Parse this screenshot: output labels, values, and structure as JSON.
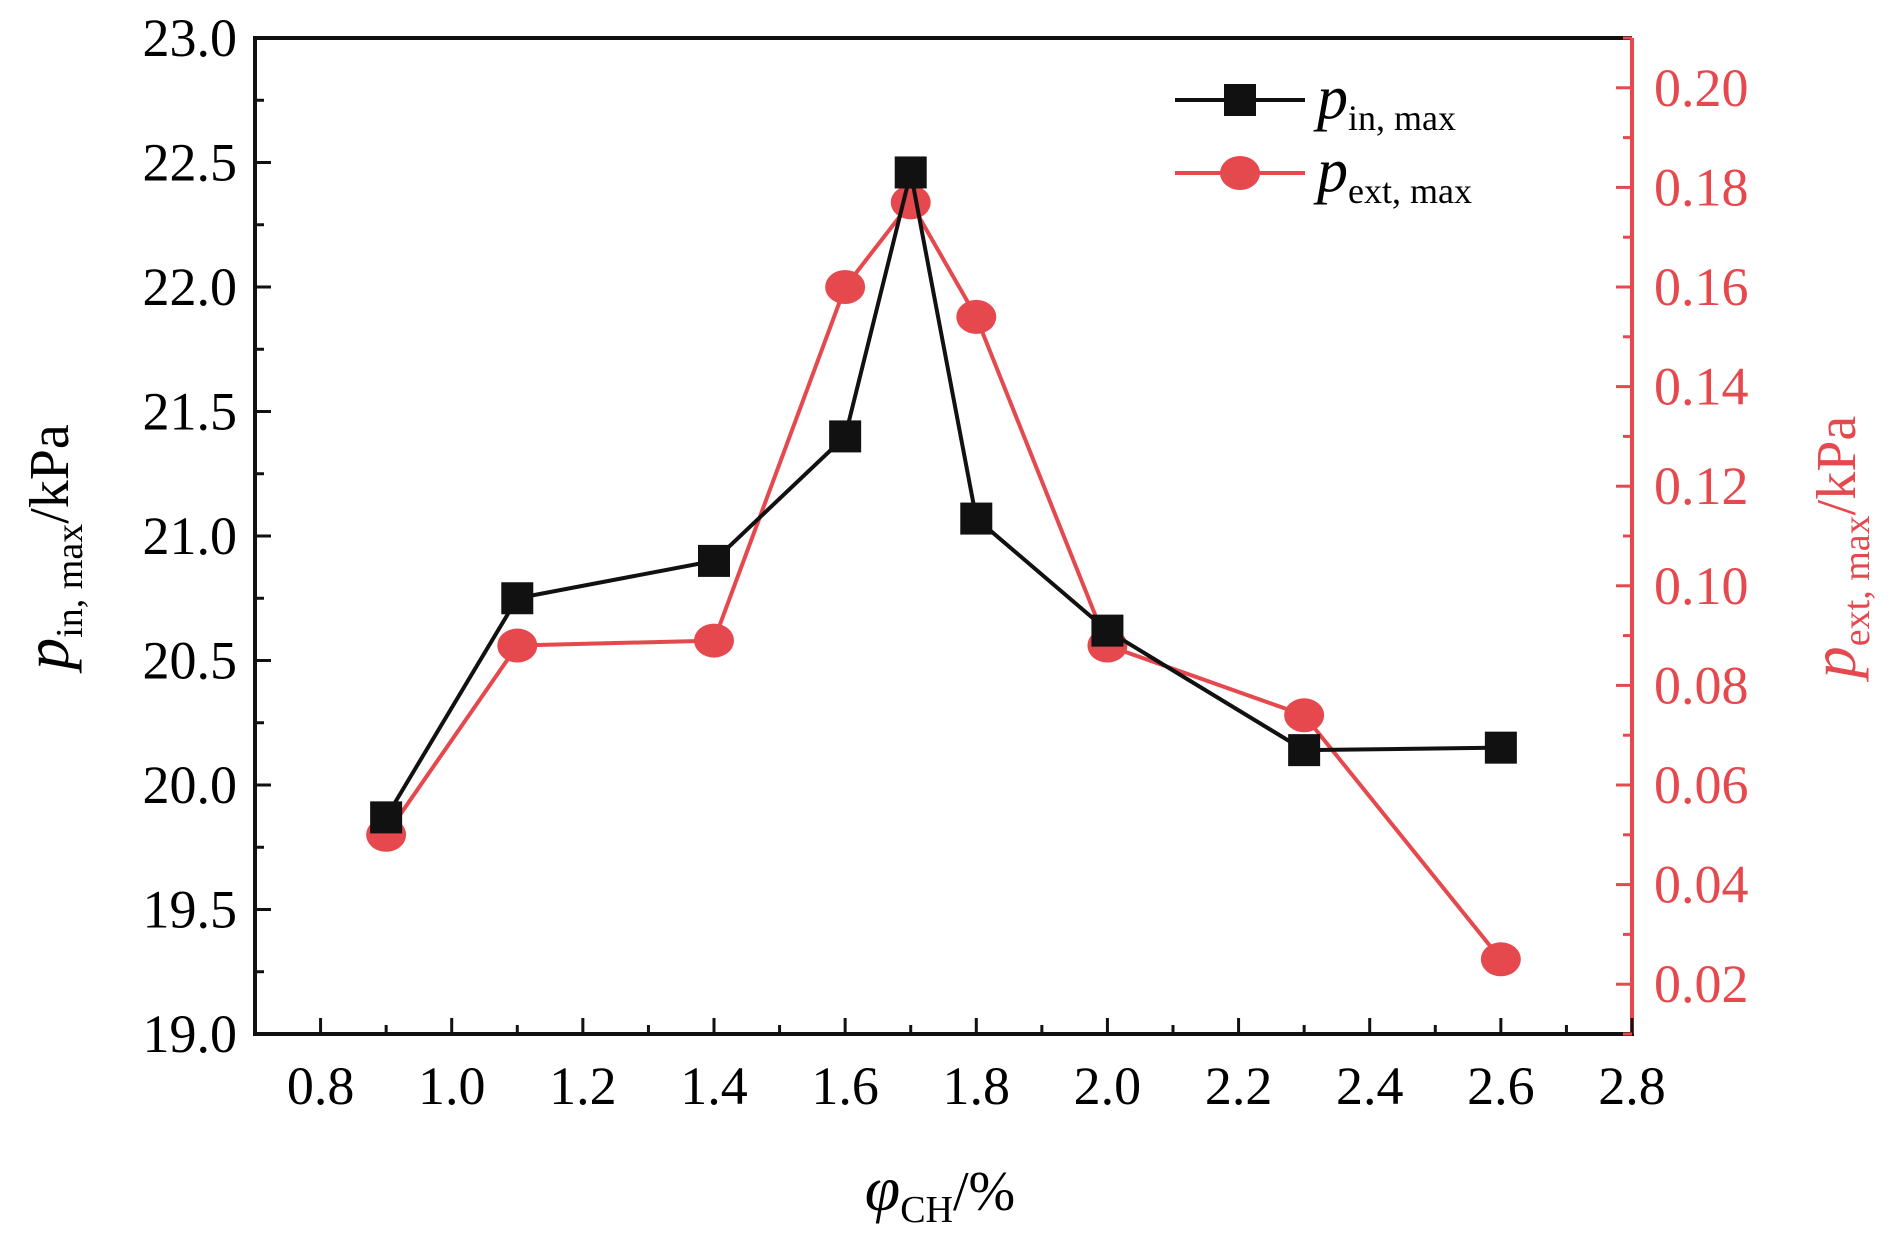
{
  "chart_data": {
    "type": "line",
    "x": [
      0.9,
      1.1,
      1.4,
      1.6,
      1.7,
      1.8,
      2.0,
      2.3,
      2.6
    ],
    "series": [
      {
        "name": "p_in, max",
        "axis": "left",
        "marker": "square",
        "color": "#111111",
        "values": [
          19.87,
          20.75,
          20.9,
          21.4,
          22.46,
          21.07,
          20.62,
          20.14,
          20.15
        ],
        "legend": {
          "symbol": "p",
          "sub": "in, max"
        }
      },
      {
        "name": "p_ext, max",
        "axis": "right",
        "marker": "circle",
        "color": "#e5484d",
        "values": [
          0.05,
          0.088,
          0.089,
          0.16,
          0.177,
          0.154,
          0.088,
          0.074,
          0.025
        ],
        "legend": {
          "symbol": "p",
          "sub": "ext, max"
        }
      }
    ],
    "xlim": [
      0.7,
      2.8
    ],
    "ylim_left": [
      19.0,
      23.0
    ],
    "ylim_right": [
      0.01,
      0.21
    ],
    "x_ticks": [
      "0.8",
      "1.0",
      "1.2",
      "1.4",
      "1.6",
      "1.8",
      "2.0",
      "2.2",
      "2.4",
      "2.6",
      "2.8"
    ],
    "y_left_ticks": [
      "19.0",
      "19.5",
      "20.0",
      "20.5",
      "21.0",
      "21.5",
      "22.0",
      "22.5",
      "23.0"
    ],
    "y_right_ticks": [
      "0.02",
      "0.04",
      "0.06",
      "0.08",
      "0.10",
      "0.12",
      "0.14",
      "0.16",
      "0.18",
      "0.20"
    ],
    "xlabel": {
      "symbol": "φ",
      "sub": "CH",
      "suffix": "/%"
    },
    "ylabel_left": {
      "symbol": "p",
      "sub": "in, max",
      "suffix": "/kPa"
    },
    "ylabel_right": {
      "symbol": "p",
      "sub": "ext, max",
      "suffix": "/kPa"
    },
    "legend_position": "top-right",
    "grid": false,
    "colors": {
      "left_axis": "#111111",
      "right_axis": "#e5484d"
    }
  }
}
